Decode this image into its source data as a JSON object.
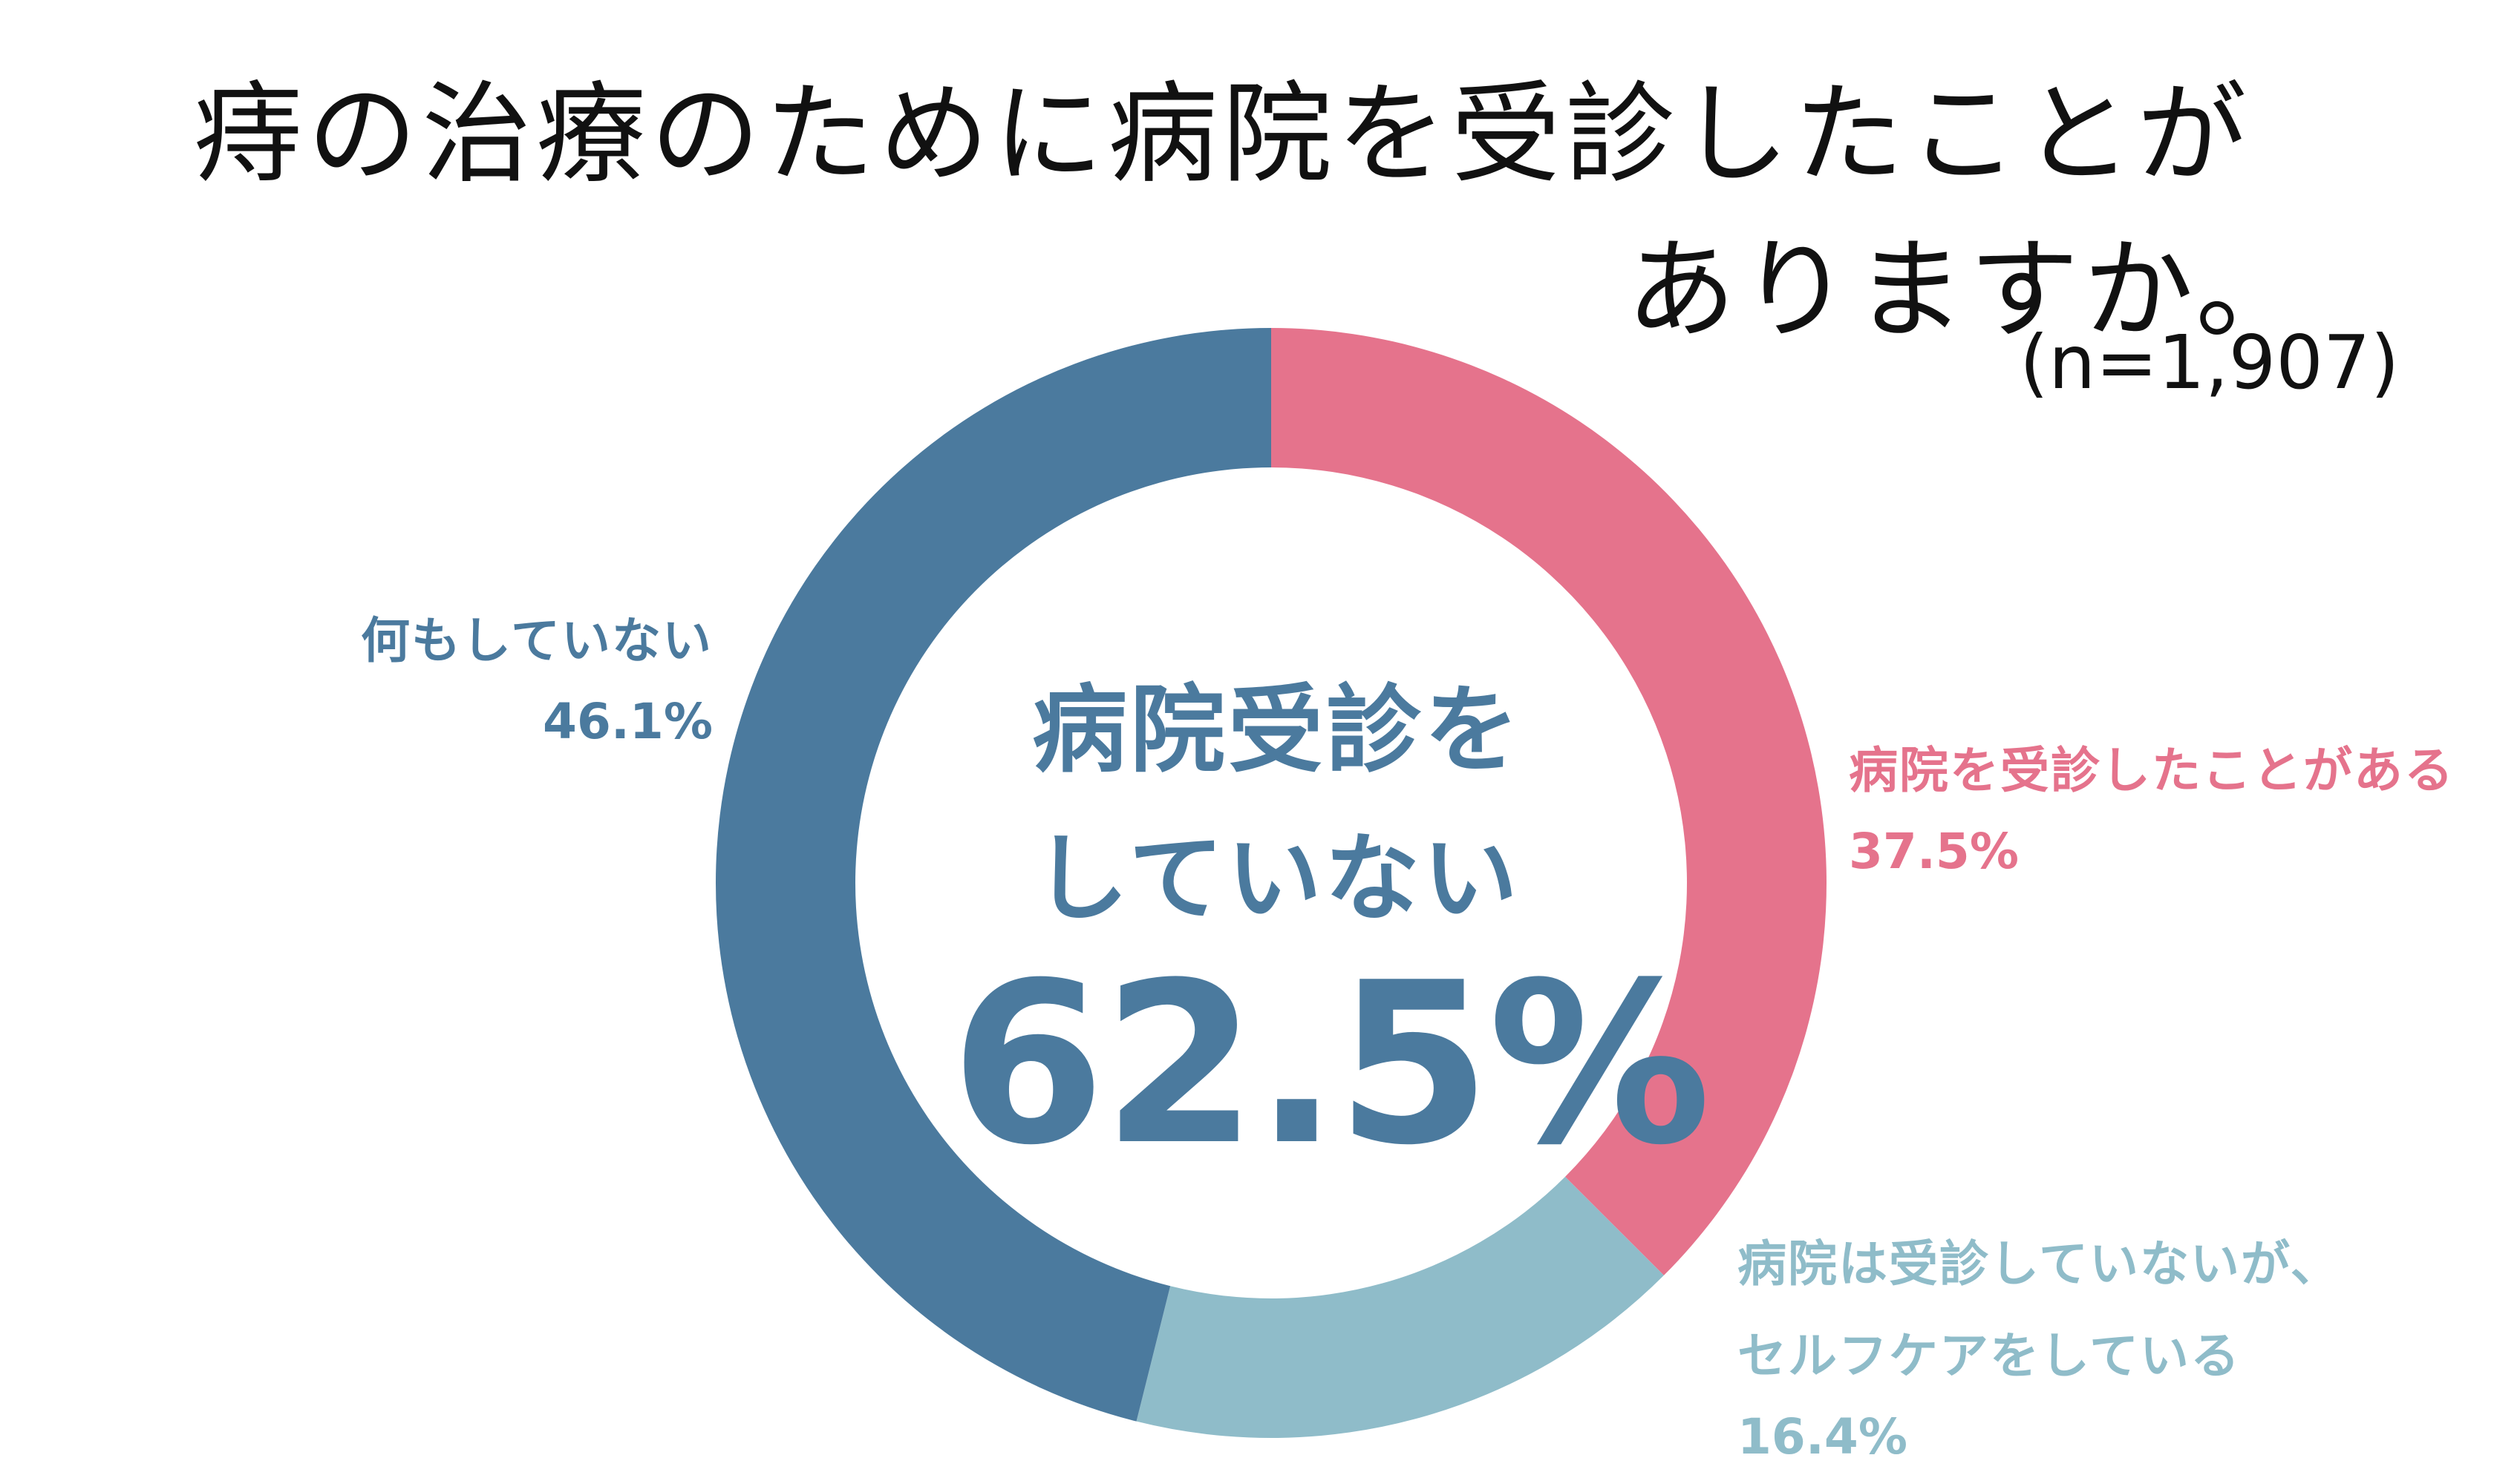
{
  "title_line1": "痔の治療のために病院を受診したことが",
  "title_line2": "ありますか。",
  "sample": "(n=1,907)",
  "center": {
    "line1": "病院受診を",
    "line2": "していない",
    "value": "62.5%"
  },
  "chart_data": {
    "type": "pie",
    "donut": true,
    "start_angle_deg": 0,
    "direction": "clockwise",
    "slices": [
      {
        "label": "病院を受診したことがある",
        "value": 37.5,
        "value_label": "37.5%",
        "color": "#e5738c"
      },
      {
        "label_lines": [
          "病院は受診していないが、",
          "セルフケアをしている"
        ],
        "value": 16.4,
        "value_label": "16.4%",
        "color": "#8fbcc9"
      },
      {
        "label": "何もしていない",
        "value": 46.1,
        "value_label": "46.1%",
        "color": "#4b7a9e"
      }
    ]
  }
}
